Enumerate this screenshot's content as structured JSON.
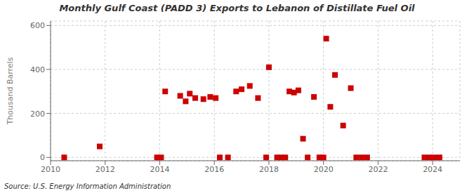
{
  "chart_data": {
    "type": "scatter",
    "title": "Monthly Gulf Coast (PADD 3) Exports to Lebanon of Distillate Fuel Oil",
    "ylabel": "Thousand Barrels",
    "annotations": [
      "Source: U.S. Energy Information Administration"
    ],
    "color": "#cc0000",
    "marker": "square",
    "grid": true,
    "xlim": [
      2010,
      2025
    ],
    "ylim": [
      -15,
      620
    ],
    "xticks": [
      2010,
      2012,
      2014,
      2016,
      2018,
      2020,
      2022,
      2024
    ],
    "yticks": [
      0,
      200,
      400,
      600
    ],
    "x": [
      2010.5,
      2011.8,
      2013.9,
      2014.05,
      2014.2,
      2014.75,
      2014.95,
      2015.1,
      2015.3,
      2015.6,
      2015.85,
      2016.05,
      2016.2,
      2016.5,
      2016.8,
      2017.0,
      2017.3,
      2017.6,
      2017.9,
      2018.0,
      2018.3,
      2018.45,
      2018.6,
      2018.75,
      2018.92,
      2019.08,
      2019.25,
      2019.42,
      2019.65,
      2019.85,
      2020.0,
      2020.1,
      2020.25,
      2020.42,
      2020.72,
      2021.0,
      2021.2,
      2021.4,
      2021.6,
      2023.7,
      2023.88,
      2024.05,
      2024.25
    ],
    "values": [
      0,
      50,
      0,
      0,
      300,
      280,
      255,
      290,
      270,
      265,
      275,
      270,
      0,
      0,
      300,
      310,
      325,
      270,
      0,
      410,
      0,
      0,
      0,
      300,
      295,
      305,
      85,
      0,
      275,
      0,
      0,
      540,
      230,
      375,
      145,
      315,
      0,
      0,
      0,
      0,
      0,
      0,
      0
    ]
  }
}
